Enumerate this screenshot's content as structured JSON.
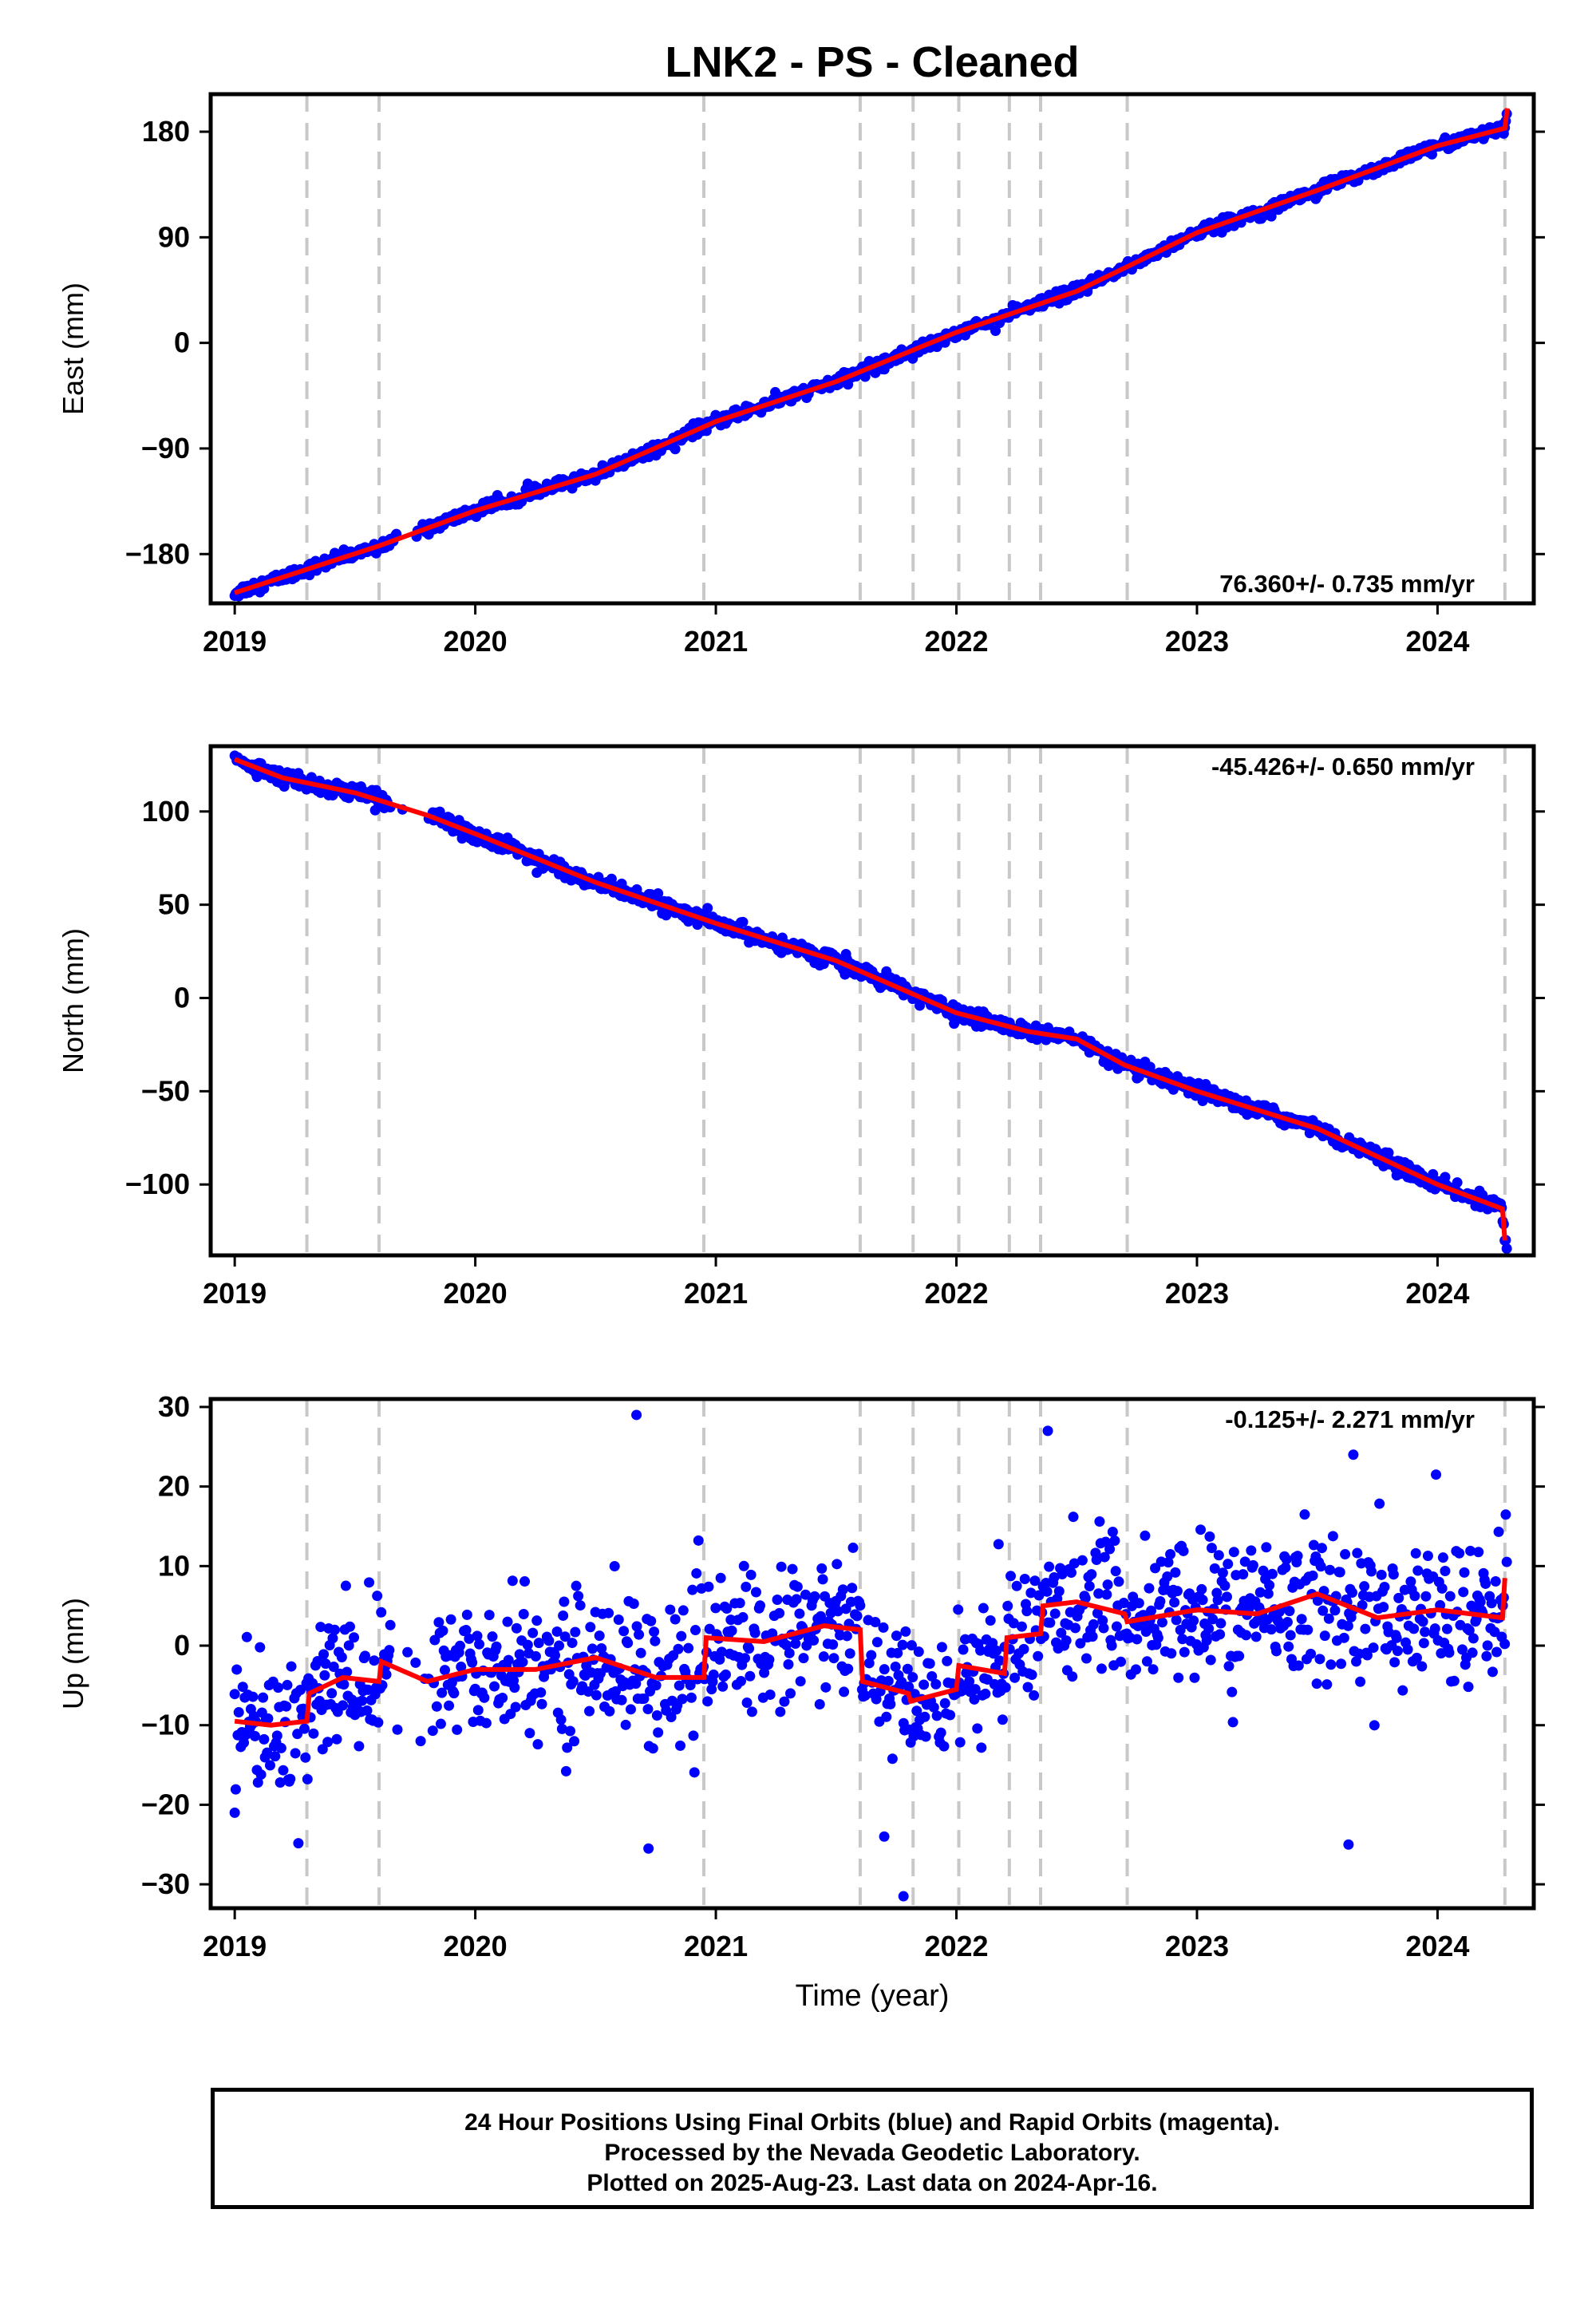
{
  "title": "LNK2  - PS - Cleaned",
  "footer": {
    "line1": "24 Hour Positions Using Final Orbits (blue) and Rapid Orbits (magenta).",
    "line2": "Processed by the Nevada Geodetic Laboratory.",
    "line3": "Plotted on 2025-Aug-23. Last data on 2024-Apr-16."
  },
  "colors": {
    "points": "#0000ff",
    "model": "#ff0000",
    "steps": "#c8c8c8",
    "frame": "#000000"
  },
  "chart_data": [
    {
      "type": "scatter",
      "component": "east",
      "ylabel": "East (mm)",
      "xlabel": "",
      "rate_label": "76.360+/- 0.735 mm/yr",
      "xlim": [
        2018.9,
        2024.4
      ],
      "ylim": [
        -222,
        212
      ],
      "yticks": [
        -180,
        -90,
        0,
        90,
        180
      ],
      "yticklabels": [
        "−180",
        "−90",
        "0",
        "90",
        "180"
      ],
      "xticks": [
        2019,
        2020,
        2021,
        2022,
        2023,
        2024
      ],
      "xticklabels": [
        "2019",
        "2020",
        "2021",
        "2022",
        "2023",
        "2024"
      ],
      "model_knots": [
        [
          2019.0,
          -213
        ],
        [
          2019.3,
          -193
        ],
        [
          2019.6,
          -173
        ],
        [
          2020.0,
          -143
        ],
        [
          2020.5,
          -112
        ],
        [
          2021.0,
          -67
        ],
        [
          2021.5,
          -33
        ],
        [
          2022.0,
          9
        ],
        [
          2022.5,
          44
        ],
        [
          2023.0,
          94
        ],
        [
          2023.5,
          130
        ],
        [
          2024.0,
          168
        ],
        [
          2024.28,
          183
        ],
        [
          2024.29,
          200
        ]
      ],
      "noise": 2.5,
      "gap": [
        2019.65,
        2019.82
      ]
    },
    {
      "type": "scatter",
      "component": "north",
      "ylabel": "North (mm)",
      "xlabel": "",
      "rate_label": "-45.426+/- 0.650 mm/yr",
      "xlim": [
        2018.9,
        2024.4
      ],
      "ylim": [
        -138,
        135
      ],
      "yticks": [
        -100,
        -50,
        0,
        50,
        100
      ],
      "yticklabels": [
        "−100",
        "−50",
        "0",
        "50",
        "100"
      ],
      "xticks": [
        2019,
        2020,
        2021,
        2022,
        2023,
        2024
      ],
      "xticklabels": [
        "2019",
        "2020",
        "2021",
        "2022",
        "2023",
        "2024"
      ],
      "model_knots": [
        [
          2019.0,
          128
        ],
        [
          2019.2,
          118
        ],
        [
          2019.5,
          110
        ],
        [
          2019.8,
          98
        ],
        [
          2020.0,
          88
        ],
        [
          2020.5,
          62
        ],
        [
          2021.0,
          40
        ],
        [
          2021.5,
          20
        ],
        [
          2022.0,
          -8
        ],
        [
          2022.3,
          -18
        ],
        [
          2022.5,
          -22
        ],
        [
          2022.7,
          -36
        ],
        [
          2023.0,
          -50
        ],
        [
          2023.5,
          -70
        ],
        [
          2024.0,
          -100
        ],
        [
          2024.27,
          -113
        ],
        [
          2024.28,
          -130
        ]
      ],
      "noise": 2.0,
      "gap": [
        2019.65,
        2019.82
      ]
    },
    {
      "type": "scatter",
      "component": "up",
      "ylabel": "Up (mm)",
      "xlabel": "Time (year)",
      "rate_label": "-0.125+/- 2.271 mm/yr",
      "xlim": [
        2018.9,
        2024.4
      ],
      "ylim": [
        -33,
        31
      ],
      "yticks": [
        -30,
        -20,
        -10,
        0,
        10,
        20,
        30
      ],
      "yticklabels": [
        "−30",
        "−20",
        "−10",
        "0",
        "10",
        "20",
        "30"
      ],
      "xticks": [
        2019,
        2020,
        2021,
        2022,
        2023,
        2024
      ],
      "xticklabels": [
        "2019",
        "2020",
        "2021",
        "2022",
        "2023",
        "2024"
      ],
      "model_knots": [
        [
          2019.0,
          -9.5
        ],
        [
          2019.15,
          -10
        ],
        [
          2019.3,
          -9.5
        ],
        [
          2019.31,
          -6
        ],
        [
          2019.45,
          -4
        ],
        [
          2019.6,
          -4.5
        ],
        [
          2019.61,
          -2
        ],
        [
          2019.8,
          -4.5
        ],
        [
          2020.0,
          -3
        ],
        [
          2020.25,
          -3
        ],
        [
          2020.5,
          -1.5
        ],
        [
          2020.75,
          -4
        ],
        [
          2020.95,
          -4
        ],
        [
          2020.96,
          1
        ],
        [
          2021.2,
          0.5
        ],
        [
          2021.45,
          2.5
        ],
        [
          2021.6,
          2
        ],
        [
          2021.61,
          -4.5
        ],
        [
          2021.8,
          -6
        ],
        [
          2021.81,
          -7
        ],
        [
          2022.0,
          -5.5
        ],
        [
          2022.01,
          -2.5
        ],
        [
          2022.2,
          -3.5
        ],
        [
          2022.21,
          1
        ],
        [
          2022.35,
          1.5
        ],
        [
          2022.36,
          5
        ],
        [
          2022.5,
          5.5
        ],
        [
          2022.7,
          4
        ],
        [
          2022.71,
          3
        ],
        [
          2023.0,
          4.5
        ],
        [
          2023.25,
          4
        ],
        [
          2023.5,
          6.5
        ],
        [
          2023.75,
          3.5
        ],
        [
          2024.0,
          4.5
        ],
        [
          2024.27,
          3.5
        ],
        [
          2024.28,
          8.5
        ]
      ],
      "noise": 4.5,
      "gap": [
        2019.65,
        2019.82
      ],
      "outliers": [
        [
          2020.67,
          29
        ],
        [
          2022.38,
          27
        ],
        [
          2023.65,
          24
        ],
        [
          2023.63,
          -25
        ],
        [
          2020.72,
          -25.5
        ],
        [
          2021.78,
          -31.5
        ],
        [
          2021.7,
          -24
        ],
        [
          2019.0,
          -21
        ]
      ]
    }
  ],
  "step_epochs": [
    2019.3,
    2019.6,
    2020.95,
    2021.6,
    2021.82,
    2022.01,
    2022.22,
    2022.35,
    2022.71,
    2024.28
  ]
}
